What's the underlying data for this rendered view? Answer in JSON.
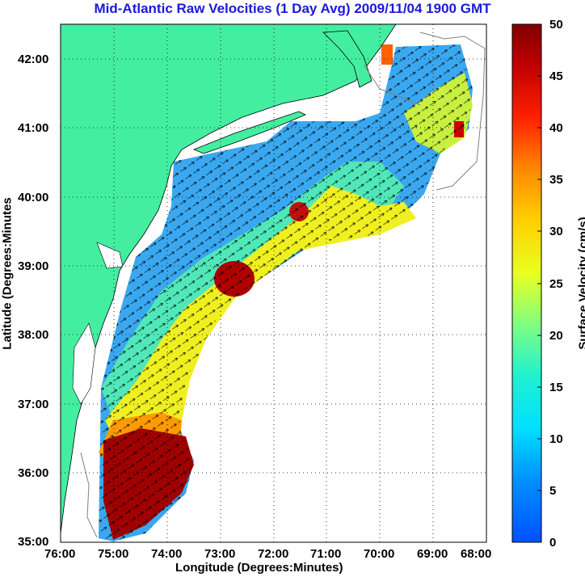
{
  "title": "Mid-Atlantic Raw Velocities (1 Day Avg) 2009/11/04 1900 GMT",
  "axes": {
    "xlabel": "Longitude (Degrees:Minutes)",
    "ylabel": "Latitude (Degrees:Minutes",
    "x_ticks": [
      "76:00",
      "75:00",
      "74:00",
      "73:00",
      "72:00",
      "71:00",
      "70:00",
      "69:00",
      "68:00"
    ],
    "y_ticks": [
      "35:00",
      "36:00",
      "37:00",
      "38:00",
      "39:00",
      "40:00",
      "41:00",
      "42:00"
    ],
    "xlim": [
      -76,
      -68
    ],
    "ylim": [
      35,
      42.5
    ],
    "grid": "dotted"
  },
  "colorbar": {
    "label": "Surface Velocity (cm/s)",
    "ticks": [
      "0",
      "5",
      "10",
      "15",
      "20",
      "25",
      "30",
      "35",
      "40",
      "45",
      "50"
    ],
    "range": [
      0,
      50
    ]
  },
  "colors": {
    "land": "#44eea0",
    "title": "#1a1ad8",
    "coast": "#000000",
    "bathymetry": "#808080"
  }
}
